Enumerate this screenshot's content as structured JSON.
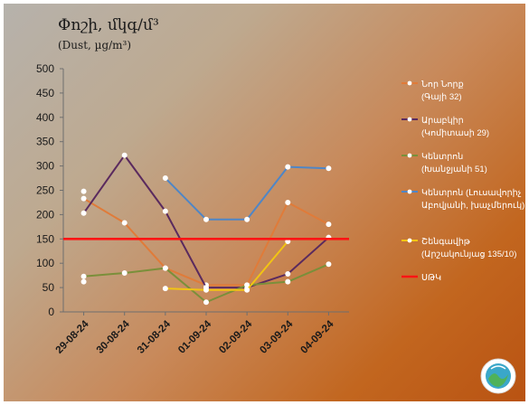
{
  "chart_data": {
    "type": "line",
    "title": "Փոշի, մկգ/մ³",
    "subtitle": "(Dust, µg/m³)",
    "categories": [
      "29-08-24",
      "30-08-24",
      "31-08-24",
      "01-09-24",
      "02-09-24",
      "03-09-24",
      "04-09-24"
    ],
    "ylim": [
      0,
      500
    ],
    "yticks": [
      0,
      50,
      100,
      150,
      200,
      250,
      300,
      350,
      400,
      450,
      500
    ],
    "grid": false,
    "legend_position": "right",
    "series": [
      {
        "name": "Նոր Նորք",
        "name_sub": "(Գայի 32)",
        "color": "#e07b39",
        "values": [
          233,
          183,
          90,
          55,
          55,
          225,
          180
        ]
      },
      {
        "name": "Արաբկիր",
        "name_sub": "(Կոմիտասի 29)",
        "color": "#5a2a5e",
        "values": [
          203,
          322,
          207,
          50,
          50,
          78,
          153
        ]
      },
      {
        "name": "Կենտրոն",
        "name_sub": "(Խանջյանի 51)",
        "color": "#7a8f3a",
        "values": [
          73,
          80,
          90,
          20,
          55,
          62,
          98
        ]
      },
      {
        "name": "Կենտրոն (Լուսավորիչ",
        "name_sub": "Աբովյանի, խաչմերուկ)",
        "color": "#4f86c6",
        "values": [
          248,
          null,
          275,
          190,
          190,
          298,
          295
        ]
      },
      {
        "name": "Շենգավիթ",
        "name_sub": "(Արշակունյաց 135/10)",
        "color": "#f2c413",
        "values": [
          62,
          null,
          48,
          45,
          45,
          145,
          null
        ]
      },
      {
        "name": "ՍԹԿ",
        "name_sub": "",
        "color": "#ff1414",
        "values": [
          150,
          150,
          150,
          150,
          150,
          150,
          150
        ]
      }
    ]
  }
}
